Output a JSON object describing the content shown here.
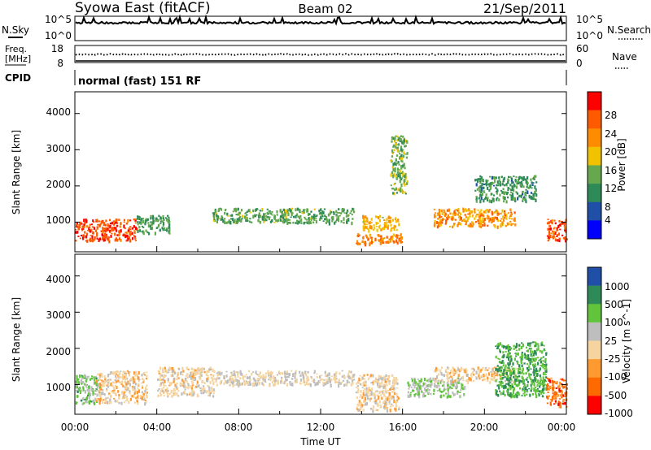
{
  "header": {
    "station": "Syowa East (fitACF)",
    "beam": "Beam 02",
    "date": "21/Sep/2011"
  },
  "param_panels": {
    "nsky_label": "N.Sky",
    "nsearch_label": "N.Search",
    "noise_ticks": [
      "10^5",
      "10^0"
    ],
    "freq_label_1": "Freq.",
    "freq_label_2": "[MHz]",
    "freq_ticks": [
      "18",
      "8"
    ],
    "nave_label": "Nave",
    "nave_ticks": [
      "60",
      "0"
    ],
    "cpid_label": "CPID",
    "cpid_text": "normal (fast) 151 RF"
  },
  "x_axis": {
    "label": "Time UT",
    "ticks": [
      "00:00",
      "04:00",
      "08:00",
      "12:00",
      "16:00",
      "20:00",
      "00:00"
    ],
    "range_hours": [
      0,
      24
    ]
  },
  "y_axis": {
    "label": "Slant Range [km]",
    "ticks": [
      "1000",
      "2000",
      "3000",
      "4000"
    ],
    "tick_values": [
      1000,
      2000,
      3000,
      4000
    ],
    "range_km": [
      180,
      4600
    ]
  },
  "colors": {
    "power": [
      "#0000ff",
      "#1f4fa7",
      "#2e8b57",
      "#66a84d",
      "#f2c200",
      "#ff8c00",
      "#ff5a00",
      "#ff0000"
    ],
    "velocity": [
      "#ff0000",
      "#ff6a00",
      "#ff9a30",
      "#f6d4a0",
      "#bebebe",
      "#61c43a",
      "#2e8b57",
      "#1f4fa7"
    ]
  },
  "chart_data": [
    {
      "type": "heatmap",
      "panel": "power",
      "colorbar_label": "Power [dB]",
      "colorbar_ticks": [
        "4",
        "8",
        "12",
        "16",
        "20",
        "24",
        "28"
      ],
      "colorbar_range": [
        0,
        32
      ],
      "x_range": [
        0,
        24
      ],
      "y_range": [
        180,
        4600
      ],
      "scatter_regions": [
        {
          "t": [
            0,
            3.0
          ],
          "r": [
            500,
            1100
          ],
          "value": 27
        },
        {
          "t": [
            3.0,
            4.6
          ],
          "r": [
            700,
            1200
          ],
          "value": 12
        },
        {
          "t": [
            6.7,
            13.6
          ],
          "r": [
            1000,
            1400
          ],
          "value": 13
        },
        {
          "t": [
            13.7,
            16.0
          ],
          "r": [
            400,
            700
          ],
          "value": 23
        },
        {
          "t": [
            14.0,
            15.8
          ],
          "r": [
            800,
            1200
          ],
          "value": 19
        },
        {
          "t": [
            17.5,
            21.5
          ],
          "r": [
            900,
            1400
          ],
          "value": 22
        },
        {
          "t": [
            19.5,
            22.5
          ],
          "r": [
            1600,
            2300
          ],
          "value": 11
        },
        {
          "t": [
            23.0,
            24.0
          ],
          "r": [
            500,
            1100
          ],
          "value": 26
        },
        {
          "t": [
            15.4,
            16.2
          ],
          "r": [
            1800,
            3400
          ],
          "value": 14
        }
      ]
    },
    {
      "type": "heatmap",
      "panel": "velocity",
      "colorbar_label": "Velocity [m s^-1]",
      "colorbar_ticks": [
        "1000",
        "500",
        "100",
        "25",
        "-25",
        "-100",
        "-500",
        "-1000"
      ],
      "colorbar_range": [
        -1200,
        1200
      ],
      "x_range": [
        0,
        24
      ],
      "y_range": [
        180,
        4600
      ],
      "scatter_regions": [
        {
          "t": [
            0,
            1.2
          ],
          "r": [
            500,
            1300
          ],
          "value": 400
        },
        {
          "t": [
            1.0,
            3.5
          ],
          "r": [
            500,
            1400
          ],
          "value": -150
        },
        {
          "t": [
            4.0,
            6.8
          ],
          "r": [
            700,
            1500
          ],
          "value": -120
        },
        {
          "t": [
            6.8,
            13.6
          ],
          "r": [
            1000,
            1400
          ],
          "value": 0
        },
        {
          "t": [
            13.7,
            15.8
          ],
          "r": [
            300,
            1300
          ],
          "value": -150
        },
        {
          "t": [
            16.2,
            19.0
          ],
          "r": [
            700,
            1200
          ],
          "value": 300
        },
        {
          "t": [
            17.5,
            21.5
          ],
          "r": [
            1100,
            1500
          ],
          "value": -150
        },
        {
          "t": [
            20.5,
            23.0
          ],
          "r": [
            700,
            2200
          ],
          "value": 600
        },
        {
          "t": [
            23.0,
            24.0
          ],
          "r": [
            400,
            1200
          ],
          "value": -700
        }
      ]
    }
  ]
}
